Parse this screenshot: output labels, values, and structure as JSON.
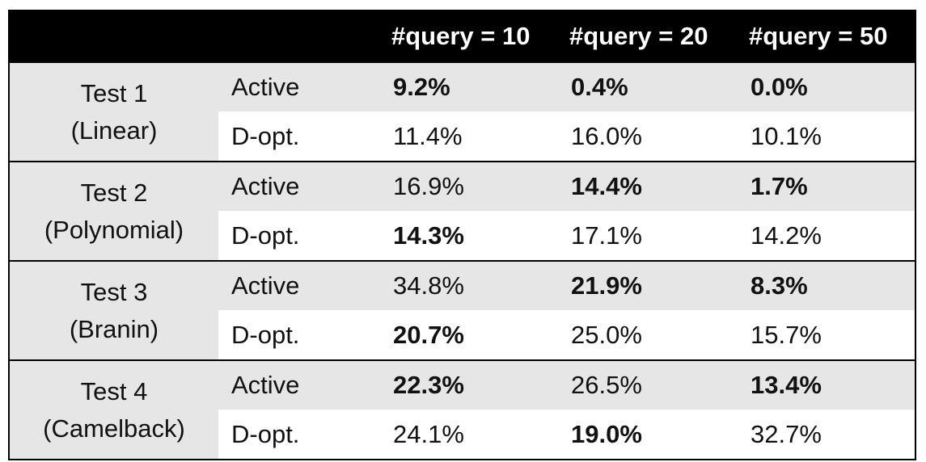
{
  "header": [
    "",
    "",
    "#query = 10",
    "#query = 20",
    "#query = 50"
  ],
  "groups": [
    {
      "test_line1": "Test 1",
      "test_line2": "(Linear)",
      "active": {
        "label": "Active",
        "values": [
          "9.2%",
          "0.4%",
          "0.0%"
        ],
        "bold": [
          true,
          true,
          true
        ]
      },
      "dopt": {
        "label": "D-opt.",
        "values": [
          "11.4%",
          "16.0%",
          "10.1%"
        ],
        "bold": [
          false,
          false,
          false
        ]
      }
    },
    {
      "test_line1": "Test 2",
      "test_line2": "(Polynomial)",
      "active": {
        "label": "Active",
        "values": [
          "16.9%",
          "14.4%",
          "1.7%"
        ],
        "bold": [
          false,
          true,
          true
        ]
      },
      "dopt": {
        "label": "D-opt.",
        "values": [
          "14.3%",
          "17.1%",
          "14.2%"
        ],
        "bold": [
          true,
          false,
          false
        ]
      }
    },
    {
      "test_line1": "Test 3",
      "test_line2": "(Branin)",
      "active": {
        "label": "Active",
        "values": [
          "34.8%",
          "21.9%",
          "8.3%"
        ],
        "bold": [
          false,
          true,
          true
        ]
      },
      "dopt": {
        "label": "D-opt.",
        "values": [
          "20.7%",
          "25.0%",
          "15.7%"
        ],
        "bold": [
          true,
          false,
          false
        ]
      }
    },
    {
      "test_line1": "Test 4",
      "test_line2": "(Camelback)",
      "active": {
        "label": "Active",
        "values": [
          "22.3%",
          "26.5%",
          "13.4%"
        ],
        "bold": [
          true,
          false,
          true
        ]
      },
      "dopt": {
        "label": "D-opt.",
        "values": [
          "24.1%",
          "19.0%",
          "32.7%"
        ],
        "bold": [
          false,
          true,
          false
        ]
      }
    }
  ]
}
